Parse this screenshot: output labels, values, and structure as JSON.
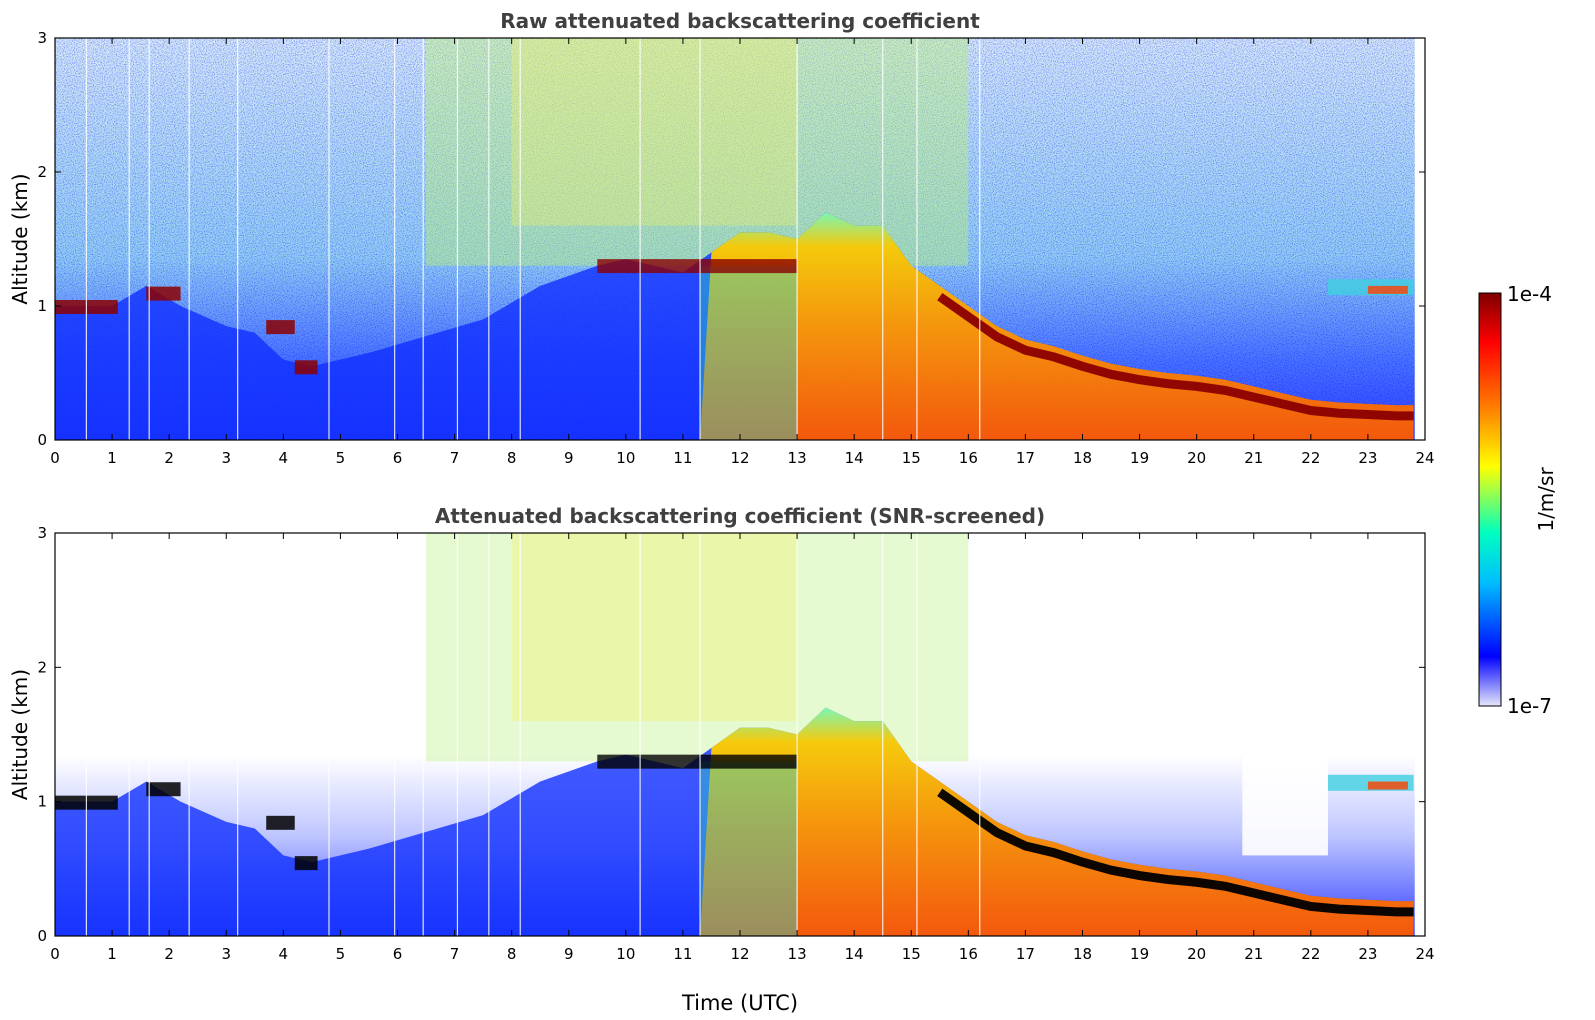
{
  "chart_data": [
    {
      "type": "heatmap",
      "title": "Raw attenuated backscattering coefficient",
      "xlabel": "",
      "ylabel": "Altitude (km)",
      "xlim": [
        0,
        24
      ],
      "ylim": [
        0,
        3
      ],
      "xticks": [
        "0",
        "1",
        "2",
        "3",
        "4",
        "5",
        "6",
        "7",
        "8",
        "9",
        "10",
        "11",
        "12",
        "13",
        "14",
        "15",
        "16",
        "17",
        "18",
        "19",
        "20",
        "21",
        "22",
        "23",
        "24"
      ],
      "yticks": [
        "0",
        "1",
        "2",
        "3"
      ],
      "grid": false,
      "layers": [
        {
          "time": [
            0,
            1,
            1.6,
            2.2,
            3.0,
            3.5,
            4.0,
            4.5,
            5.5,
            7.5,
            8.5,
            9.5,
            10,
            10.5,
            11,
            11.5,
            12,
            12.5,
            13,
            13.5,
            14,
            14.5,
            15,
            15.5,
            16,
            16.5,
            17,
            17.5,
            18,
            18.5,
            19,
            19.5,
            20,
            20.5,
            21,
            21.5,
            22,
            22.5,
            23,
            23.5,
            23.8
          ],
          "top_km": [
            1.0,
            1.0,
            1.15,
            1.0,
            0.85,
            0.8,
            0.6,
            0.55,
            0.65,
            0.9,
            1.15,
            1.3,
            1.35,
            1.3,
            1.25,
            1.4,
            1.55,
            1.55,
            1.5,
            1.7,
            1.6,
            1.6,
            1.3,
            1.15,
            1.0,
            0.85,
            0.75,
            0.7,
            0.63,
            0.57,
            0.53,
            0.5,
            0.48,
            0.45,
            0.4,
            0.35,
            0.3,
            0.28,
            0.27,
            0.26,
            0.26
          ]
        }
      ]
    },
    {
      "type": "heatmap",
      "title": "Attenuated backscattering coefficient (SNR-screened)",
      "xlabel": "Time (UTC)",
      "ylabel": "Altitude (km)",
      "xlim": [
        0,
        24
      ],
      "ylim": [
        0,
        3
      ],
      "xticks": [
        "0",
        "1",
        "2",
        "3",
        "4",
        "5",
        "6",
        "7",
        "8",
        "9",
        "10",
        "11",
        "12",
        "13",
        "14",
        "15",
        "16",
        "17",
        "18",
        "19",
        "20",
        "21",
        "22",
        "23",
        "24"
      ],
      "yticks": [
        "0",
        "1",
        "2",
        "3"
      ],
      "grid": false
    }
  ],
  "colorbar": {
    "label": "1/m/sr",
    "max_label": "1e-4",
    "min_label": "1e-7",
    "scale": "log",
    "range": [
      1e-07,
      0.0001
    ],
    "colormap": [
      "#e6e6fa",
      "#0000ff",
      "#00bfff",
      "#00ffbf",
      "#ffff00",
      "#ff8000",
      "#ff0000",
      "#800000"
    ]
  }
}
